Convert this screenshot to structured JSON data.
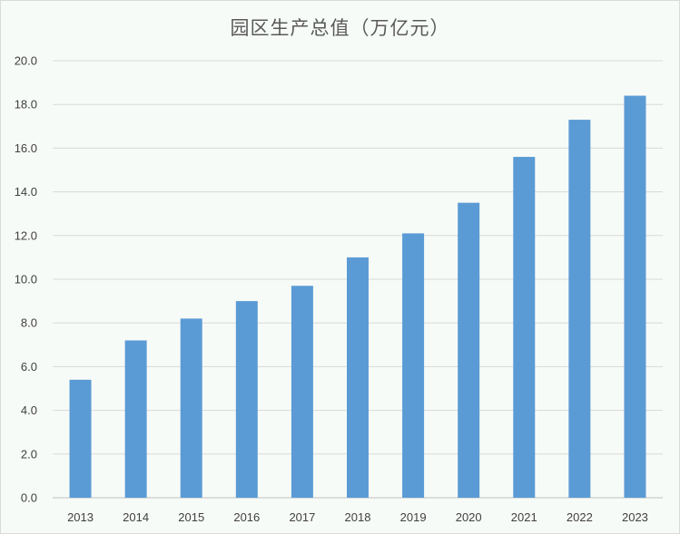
{
  "chart_data": {
    "type": "bar",
    "title": "园区生产总值（万亿元）",
    "categories": [
      "2013",
      "2014",
      "2015",
      "2016",
      "2017",
      "2018",
      "2019",
      "2020",
      "2021",
      "2022",
      "2023"
    ],
    "series": [
      {
        "values": [
          5.4,
          7.2,
          8.2,
          9.0,
          9.7,
          11.0,
          12.1,
          13.5,
          15.6,
          17.3,
          18.4
        ]
      }
    ],
    "xlabel": "",
    "ylabel": "",
    "ylim": [
      0,
      20
    ],
    "yticks": [
      "0.0",
      "2.0",
      "4.0",
      "6.0",
      "8.0",
      "10.0",
      "12.0",
      "14.0",
      "16.0",
      "18.0",
      "20.0"
    ],
    "grid": true,
    "legend": "none",
    "colors": {
      "bar": "#5b9bd5",
      "grid": "#d9d9d9",
      "axis": "#bfbfbf"
    }
  }
}
